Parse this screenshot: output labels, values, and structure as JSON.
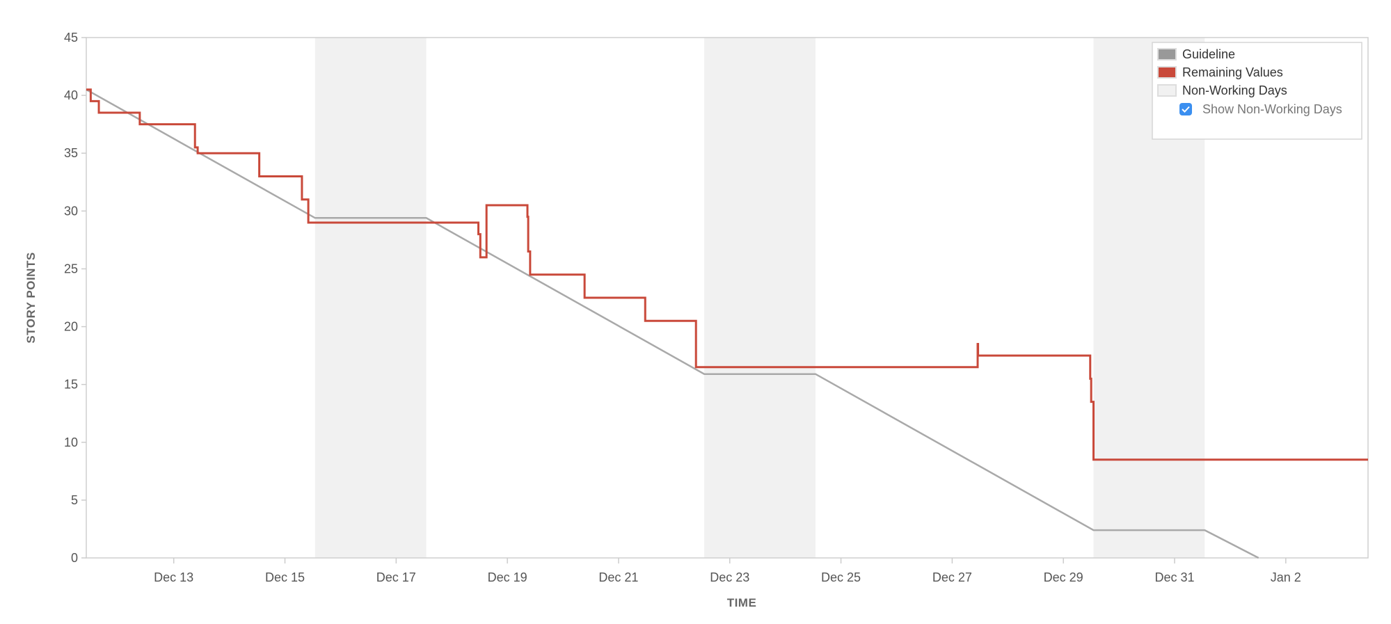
{
  "chart_data": {
    "type": "line",
    "title": "",
    "xlabel": "TIME",
    "ylabel": "STORY POINTS",
    "ylim": [
      0,
      45
    ],
    "xlim": [
      "Dec 11 10:15",
      "Jan 3 11:30"
    ],
    "yticks": [
      0,
      5,
      10,
      15,
      20,
      25,
      30,
      35,
      40,
      45
    ],
    "xticks": [
      {
        "at": "Dec 13 00:00",
        "label": "Dec 13"
      },
      {
        "at": "Dec 15 00:00",
        "label": "Dec 15"
      },
      {
        "at": "Dec 17 00:00",
        "label": "Dec 17"
      },
      {
        "at": "Dec 19 00:00",
        "label": "Dec 19"
      },
      {
        "at": "Dec 21 00:00",
        "label": "Dec 21"
      },
      {
        "at": "Dec 23 00:00",
        "label": "Dec 23"
      },
      {
        "at": "Dec 25 00:00",
        "label": "Dec 25"
      },
      {
        "at": "Dec 27 00:00",
        "label": "Dec 27"
      },
      {
        "at": "Dec 29 00:00",
        "label": "Dec 29"
      },
      {
        "at": "Dec 31 00:00",
        "label": "Dec 31"
      },
      {
        "at": "Jan 2 00:00",
        "label": "Jan 2"
      }
    ],
    "grid": false,
    "legend_position": "top-right",
    "non_working_days": [
      [
        "Dec 15 13:00",
        "Dec 17 13:00"
      ],
      [
        "Dec 22 13:00",
        "Dec 24 13:00"
      ],
      [
        "Dec 29 13:00",
        "Dec 31 13:00"
      ]
    ],
    "series": [
      {
        "name": "Guideline",
        "color": "#a9a9a9",
        "style": "linear",
        "points": [
          [
            "Dec 11 10:15",
            40.5
          ],
          [
            "Dec 15 13:00",
            29.4
          ],
          [
            "Dec 17 13:00",
            29.4
          ],
          [
            "Dec 22 13:00",
            15.9
          ],
          [
            "Dec 24 13:00",
            15.9
          ],
          [
            "Dec 29 13:00",
            2.4
          ],
          [
            "Dec 31 13:00",
            2.4
          ],
          [
            "Jan 1 12:15",
            0
          ]
        ]
      },
      {
        "name": "Remaining Values",
        "color": "#c9493a",
        "style": "step",
        "points": [
          [
            "Dec 11 10:15",
            40.5
          ],
          [
            "Dec 11 12:10",
            39.5
          ],
          [
            "Dec 11 15:40",
            38.5
          ],
          [
            "Dec 12 09:20",
            37.5
          ],
          [
            "Dec 13 09:10",
            35.5
          ],
          [
            "Dec 13 10:20",
            35
          ],
          [
            "Dec 14 12:55",
            33
          ],
          [
            "Dec 15 07:20",
            31
          ],
          [
            "Dec 15 10:05",
            29
          ],
          [
            "Dec 18 11:30",
            28
          ],
          [
            "Dec 18 12:20",
            26
          ],
          [
            "Dec 18 15:00",
            30.5
          ],
          [
            "Dec 19 08:40",
            29.5
          ],
          [
            "Dec 19 09:00",
            26.5
          ],
          [
            "Dec 19 09:50",
            24.5
          ],
          [
            "Dec 20 09:20",
            22.5
          ],
          [
            "Dec 21 11:30",
            20.5
          ],
          [
            "Dec 22 09:25",
            16.5
          ],
          [
            "Dec 27 11:00",
            18.5
          ],
          [
            "Dec 27 11:10",
            17.5
          ],
          [
            "Dec 29 11:35",
            15.5
          ],
          [
            "Dec 29 12:00",
            13.5
          ],
          [
            "Dec 29 13:00",
            8.5
          ],
          [
            "Jan 3 11:30",
            8.5
          ]
        ]
      }
    ]
  },
  "legend": {
    "guideline": {
      "label": "Guideline",
      "color": "#999999"
    },
    "remaining": {
      "label": "Remaining Values",
      "color": "#c9493a"
    },
    "non_working": {
      "label": "Non-Working Days",
      "color": "#f1f1f1"
    },
    "show_non_working": {
      "label": "Show Non-Working Days",
      "checked": true,
      "color": "#3b8ff0"
    }
  }
}
